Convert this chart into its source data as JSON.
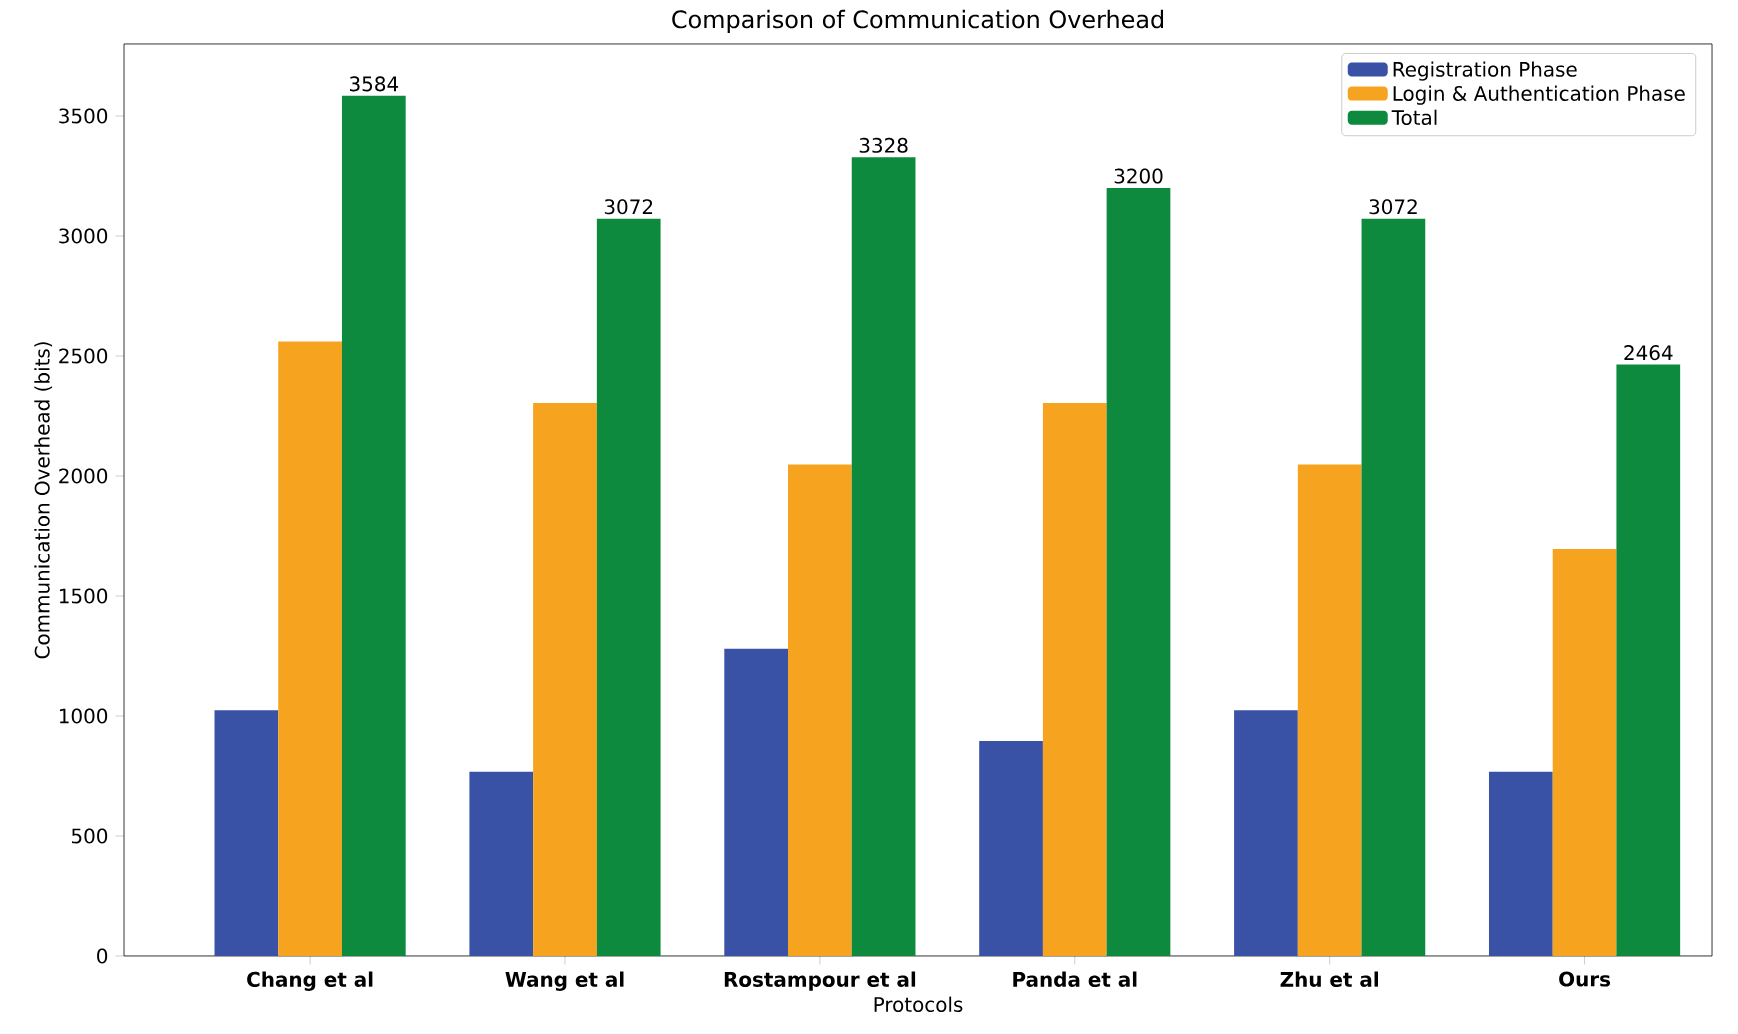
{
  "chart_data": {
    "type": "bar",
    "title": "Comparison of Communication Overhead",
    "xlabel": "Protocols",
    "ylabel": "Communication Overhead (bits)",
    "categories": [
      "Chang et al",
      "Wang et al",
      "Rostampour et al",
      "Panda et al",
      "Zhu et al",
      "Ours"
    ],
    "series": [
      {
        "name": "Registration Phase",
        "color": "#3a52a6",
        "values": [
          1024,
          768,
          1280,
          896,
          1024,
          768
        ]
      },
      {
        "name": "Login & Authentication Phase",
        "color": "#f6a31f",
        "values": [
          2560,
          2304,
          2048,
          2304,
          2048,
          1696
        ]
      },
      {
        "name": "Total",
        "color": "#0d8a3e",
        "values": [
          3584,
          3072,
          3328,
          3200,
          3072,
          2464
        ],
        "value_labels": [
          "3584",
          "3072",
          "3328",
          "3200",
          "3072",
          "2464"
        ]
      }
    ],
    "ylim": [
      0,
      3800
    ],
    "yticks": [
      0,
      500,
      1000,
      1500,
      2000,
      2500,
      3000,
      3500
    ],
    "legend": "top right"
  }
}
